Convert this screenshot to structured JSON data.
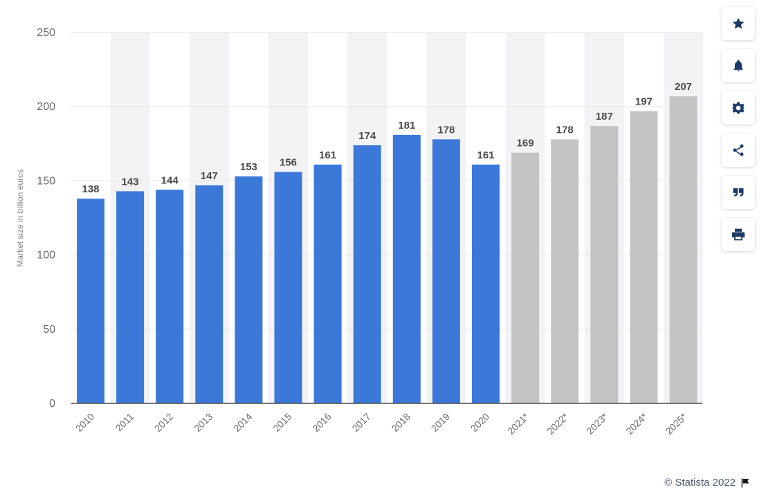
{
  "chart_data": {
    "type": "bar",
    "categories": [
      "2010",
      "2011",
      "2012",
      "2013",
      "2014",
      "2015",
      "2016",
      "2017",
      "2018",
      "2019",
      "2020",
      "2021*",
      "2022*",
      "2023*",
      "2024*",
      "2025*"
    ],
    "values": [
      138,
      143,
      144,
      147,
      153,
      156,
      161,
      174,
      181,
      178,
      161,
      169,
      178,
      187,
      197,
      207
    ],
    "forecast": [
      false,
      false,
      false,
      false,
      false,
      false,
      false,
      false,
      false,
      false,
      false,
      true,
      true,
      true,
      true,
      true
    ],
    "ylabel": "Market size in billion euros",
    "ylim": [
      0,
      250
    ],
    "yticks": [
      0,
      50,
      100,
      150,
      200,
      250
    ],
    "grid": true,
    "colors": {
      "actual": "#3b78d8",
      "forecast": "#c4c4c4",
      "band": "#f3f3f5"
    }
  },
  "toolbar": {
    "items": [
      {
        "name": "favorite",
        "icon": "star-icon"
      },
      {
        "name": "notification",
        "icon": "bell-icon"
      },
      {
        "name": "settings",
        "icon": "gear-icon"
      },
      {
        "name": "share",
        "icon": "share-icon"
      },
      {
        "name": "cite",
        "icon": "quote-icon"
      },
      {
        "name": "print",
        "icon": "print-icon"
      }
    ]
  },
  "footer": {
    "credit": "© Statista 2022"
  }
}
